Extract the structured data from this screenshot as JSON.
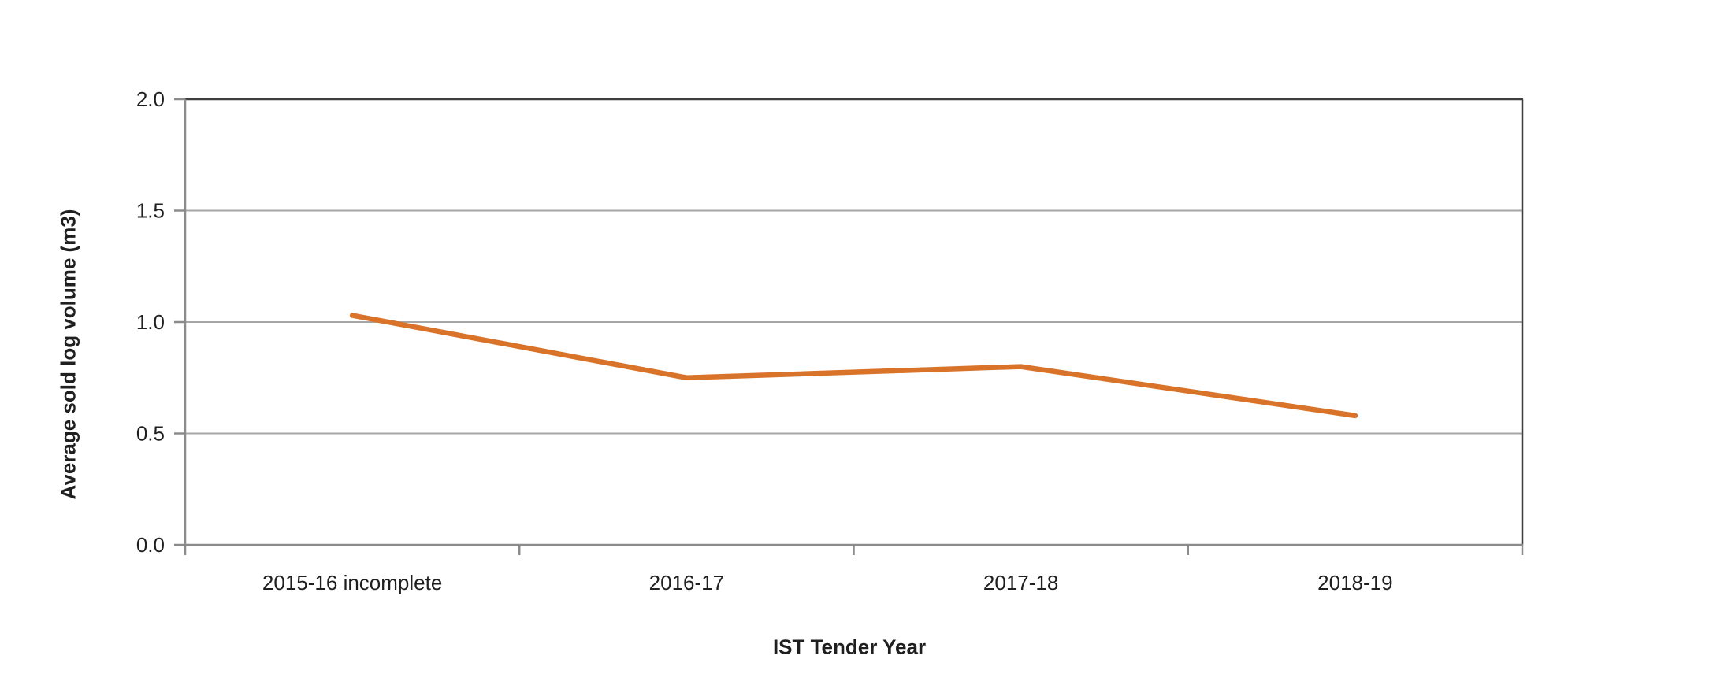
{
  "chart_data": {
    "type": "line",
    "categories": [
      "2015-16 incomplete",
      "2016-17",
      "2017-18",
      "2018-19"
    ],
    "series": [
      {
        "name": "Average sold log volume",
        "values": [
          1.03,
          0.75,
          0.8,
          0.58
        ]
      }
    ],
    "title": "",
    "xlabel": "IST Tender Year",
    "ylabel": "Average sold log volume (m3)",
    "ylim": [
      0.0,
      2.0
    ],
    "ytick_step": 0.5,
    "ytick_labels": [
      "0.0",
      "0.5",
      "1.0",
      "1.5",
      "2.0"
    ],
    "grid": "horizontal",
    "legend": "none",
    "colors": {
      "line": "#d9732a",
      "gridline": "#a6a6a6",
      "axis": "#8c8c8c",
      "plot_border": "#3f3f3f",
      "text": "#1f1f1f",
      "background": "#ffffff"
    }
  }
}
